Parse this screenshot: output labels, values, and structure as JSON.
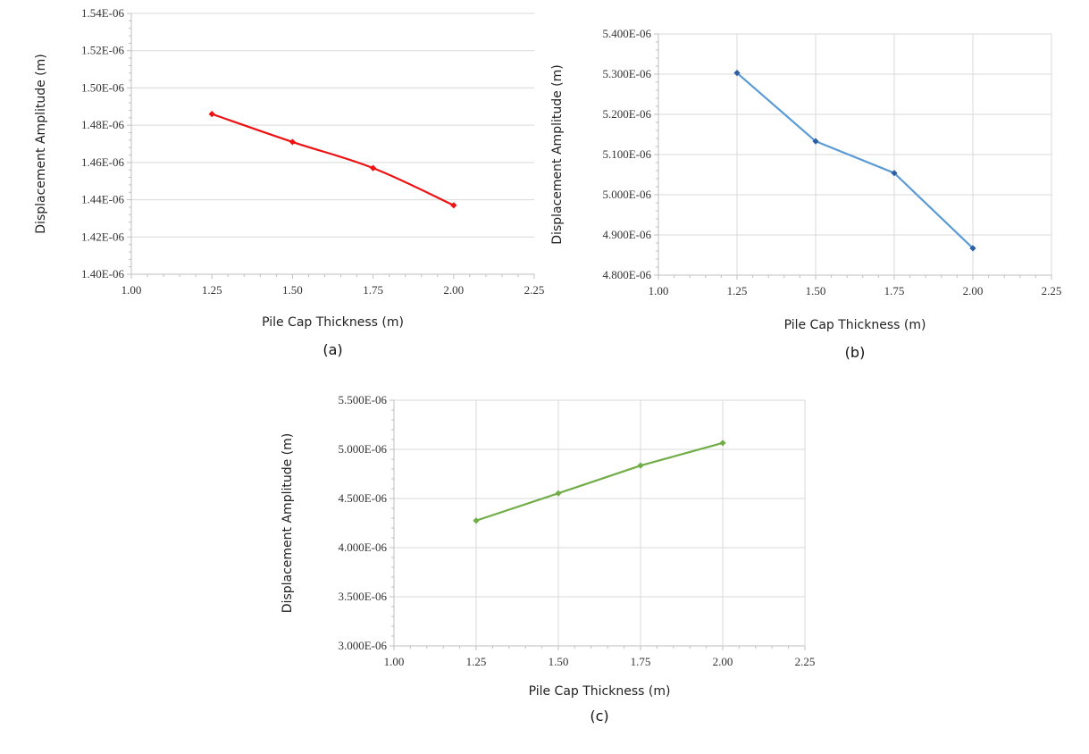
{
  "chart_data": [
    {
      "type": "line",
      "panel_label": "(a)",
      "xlabel": "Pile Cap Thickness (m)",
      "ylabel": "Displacement Amplitude (m)",
      "xlim": [
        1.0,
        2.25
      ],
      "ylim": [
        1.4e-06,
        1.54e-06
      ],
      "xticks": [
        "1.00",
        "1.25",
        "1.50",
        "1.75",
        "2.00",
        "2.25"
      ],
      "yticks": [
        "1.40E-06",
        "1.42E-06",
        "1.44E-06",
        "1.46E-06",
        "1.48E-06",
        "1.50E-06",
        "1.52E-06",
        "1.54E-06"
      ],
      "grid": "horizontal",
      "series": [
        {
          "color": "#ee1111",
          "marker": "diamond",
          "smooth": true,
          "x": [
            1.25,
            1.5,
            1.75,
            2.0
          ],
          "y": [
            1.486e-06,
            1.471e-06,
            1.457e-06,
            1.437e-06
          ]
        }
      ]
    },
    {
      "type": "line",
      "panel_label": "(b)",
      "xlabel": "Pile Cap Thickness (m)",
      "ylabel": "Displacement Amplitude (m)",
      "xlim": [
        1.0,
        2.25
      ],
      "ylim": [
        4.8e-06,
        5.4e-06
      ],
      "xticks": [
        "1.00",
        "1.25",
        "1.50",
        "1.75",
        "2.00",
        "2.25"
      ],
      "yticks": [
        "4.800E-06",
        "4.900E-06",
        "5.000E-06",
        "5.100E-06",
        "5.200E-06",
        "5.300E-06",
        "5.400E-06"
      ],
      "grid": "both",
      "series": [
        {
          "color": "#5b9bd5",
          "marker_color": "#2e5fa3",
          "marker": "diamond",
          "smooth": false,
          "x": [
            1.25,
            1.5,
            1.75,
            2.0
          ],
          "y": [
            5.303e-06,
            5.133e-06,
            5.054e-06,
            4.867e-06
          ]
        }
      ]
    },
    {
      "type": "line",
      "panel_label": "(c)",
      "xlabel": "Pile Cap Thickness (m)",
      "ylabel": "Displacement Amplitude (m)",
      "xlim": [
        1.0,
        2.25
      ],
      "ylim": [
        3e-06,
        5.5e-06
      ],
      "xticks": [
        "1.00",
        "1.25",
        "1.50",
        "1.75",
        "2.00",
        "2.25"
      ],
      "yticks": [
        "3.000E-06",
        "3.500E-06",
        "4.000E-06",
        "4.500E-06",
        "5.000E-06",
        "5.500E-06"
      ],
      "grid": "both",
      "series": [
        {
          "color": "#70ad47",
          "marker": "diamond",
          "smooth": false,
          "x": [
            1.25,
            1.5,
            1.75,
            2.0
          ],
          "y": [
            4.275e-06,
            4.553e-06,
            4.835e-06,
            5.065e-06
          ]
        }
      ]
    }
  ]
}
